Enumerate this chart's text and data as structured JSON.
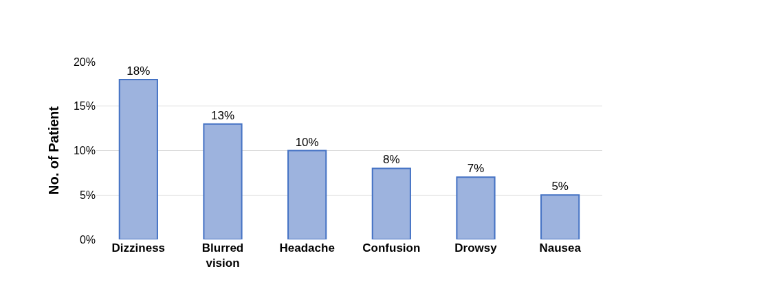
{
  "chart_data": {
    "type": "bar",
    "ylabel": "No. of Patient",
    "categories": [
      "Dizziness",
      "Blurred vision",
      "Headache",
      "Confusion",
      "Drowsy",
      "Nausea"
    ],
    "values": [
      18,
      13,
      10,
      8,
      7,
      5
    ],
    "value_labels": [
      "18%",
      "13%",
      "10%",
      "8%",
      "7%",
      "5%"
    ],
    "color": "#9db3de",
    "ylim": [
      0,
      20
    ],
    "yticks": [
      {
        "value": 0,
        "label": "0%"
      },
      {
        "value": 5,
        "label": "5%"
      },
      {
        "value": 10,
        "label": "10%"
      },
      {
        "value": 15,
        "label": "15%"
      },
      {
        "value": 20,
        "label": "20%"
      }
    ],
    "grid": "y",
    "legend": false
  }
}
